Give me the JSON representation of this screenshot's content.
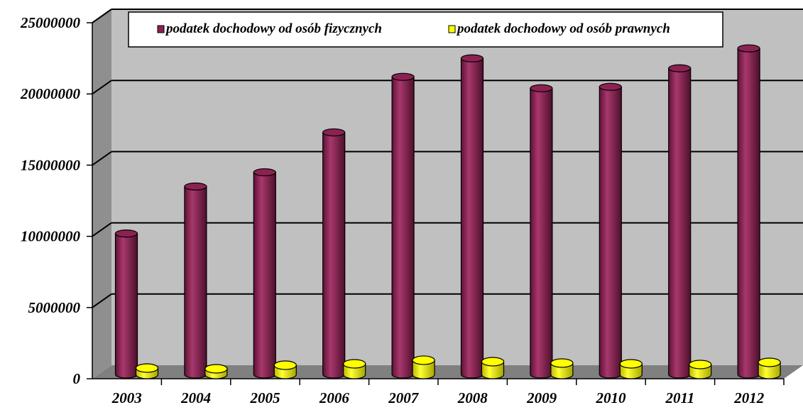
{
  "chart_data": {
    "type": "bar",
    "style": "3d-cylinder",
    "categories": [
      "2003",
      "2004",
      "2005",
      "2006",
      "2007",
      "2008",
      "2009",
      "2010",
      "2011",
      "2012"
    ],
    "series": [
      {
        "name": "podatek dochodowy od osób fizycznych",
        "color": "#8B2252",
        "values": [
          9900000,
          13200000,
          14200000,
          17000000,
          20900000,
          22200000,
          20100000,
          20200000,
          21500000,
          22900000
        ]
      },
      {
        "name": "podatek dochodowy od osób prawnych",
        "color": "#FFFF00",
        "values": [
          450000,
          400000,
          650000,
          750000,
          1000000,
          900000,
          800000,
          750000,
          700000,
          850000
        ]
      }
    ],
    "y_ticks": [
      "25000000",
      "20000000",
      "15000000",
      "10000000",
      "5000000",
      "0"
    ],
    "ylim": [
      0,
      25000000
    ],
    "grid": true,
    "legend_position": "top",
    "wall_color": "#C0C0C0",
    "floor_color": "#808080"
  }
}
